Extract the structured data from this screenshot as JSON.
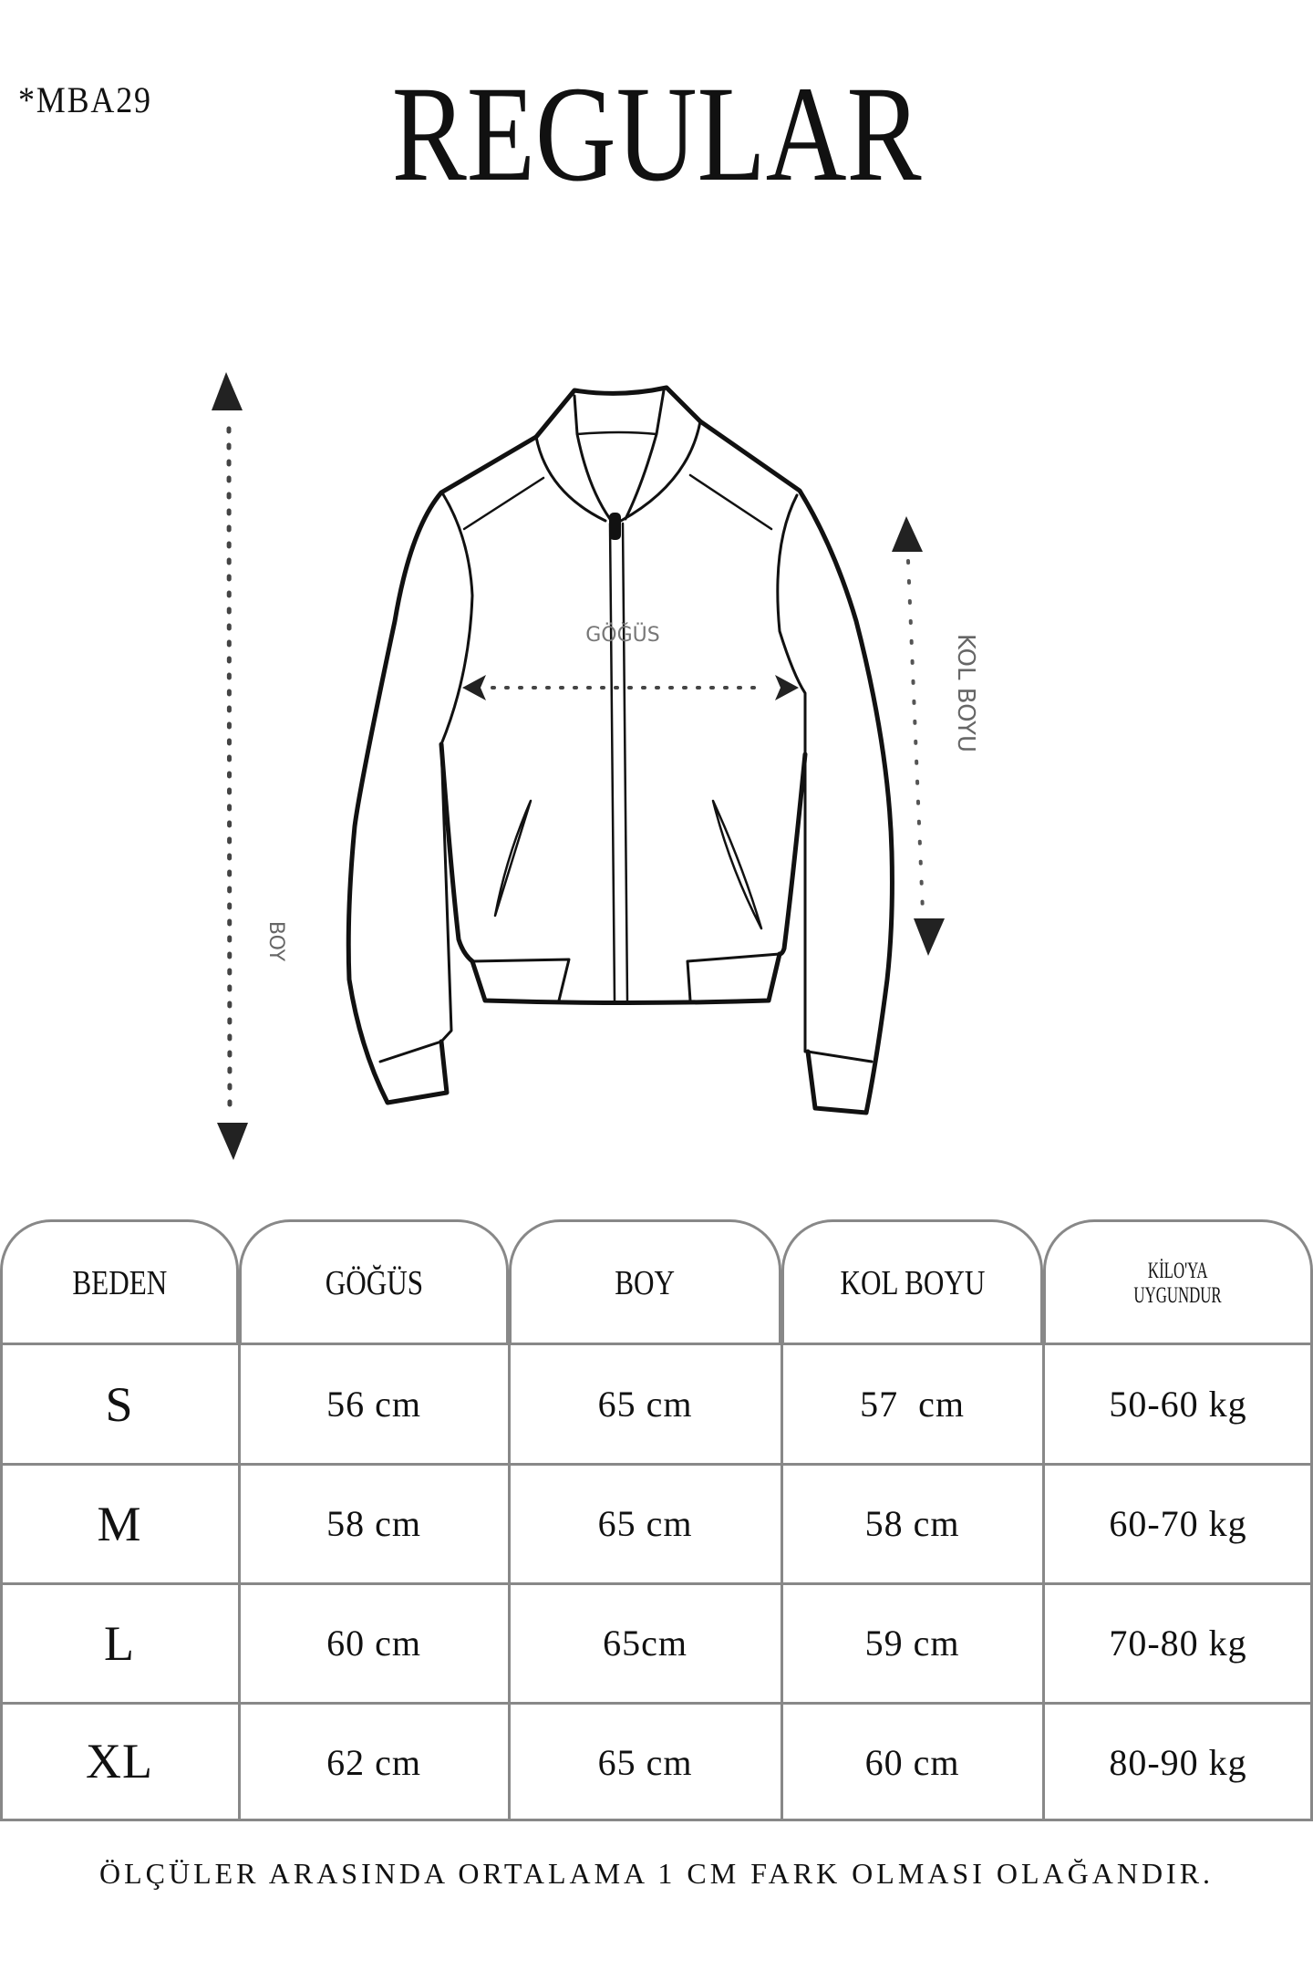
{
  "header": {
    "code": "*MBA29",
    "title": "REGULAR"
  },
  "diagram": {
    "chest_label": "GÖĞÜS",
    "sleeve_label": "KOL BOYU",
    "length_label": "BOY"
  },
  "table": {
    "headers": [
      "BEDEN",
      "GÖĞÜS",
      "BOY",
      "KOL BOYU",
      "KİLO'YA",
      "UYGUNDUR"
    ],
    "rows": [
      [
        "S",
        "56 cm",
        "65 cm",
        "57  cm",
        "50-60 kg"
      ],
      [
        "M",
        "58 cm",
        "65 cm",
        "58 cm",
        "60-70 kg"
      ],
      [
        "L",
        "60 cm",
        "65cm",
        "59 cm",
        "70-80 kg"
      ],
      [
        "XL",
        "62 cm",
        "65 cm",
        "60 cm",
        "80-90 kg"
      ]
    ]
  },
  "footer": "ÖLÇÜLER ARASINDA ORTALAMA 1 CM FARK OLMASI OLAĞANDIR."
}
